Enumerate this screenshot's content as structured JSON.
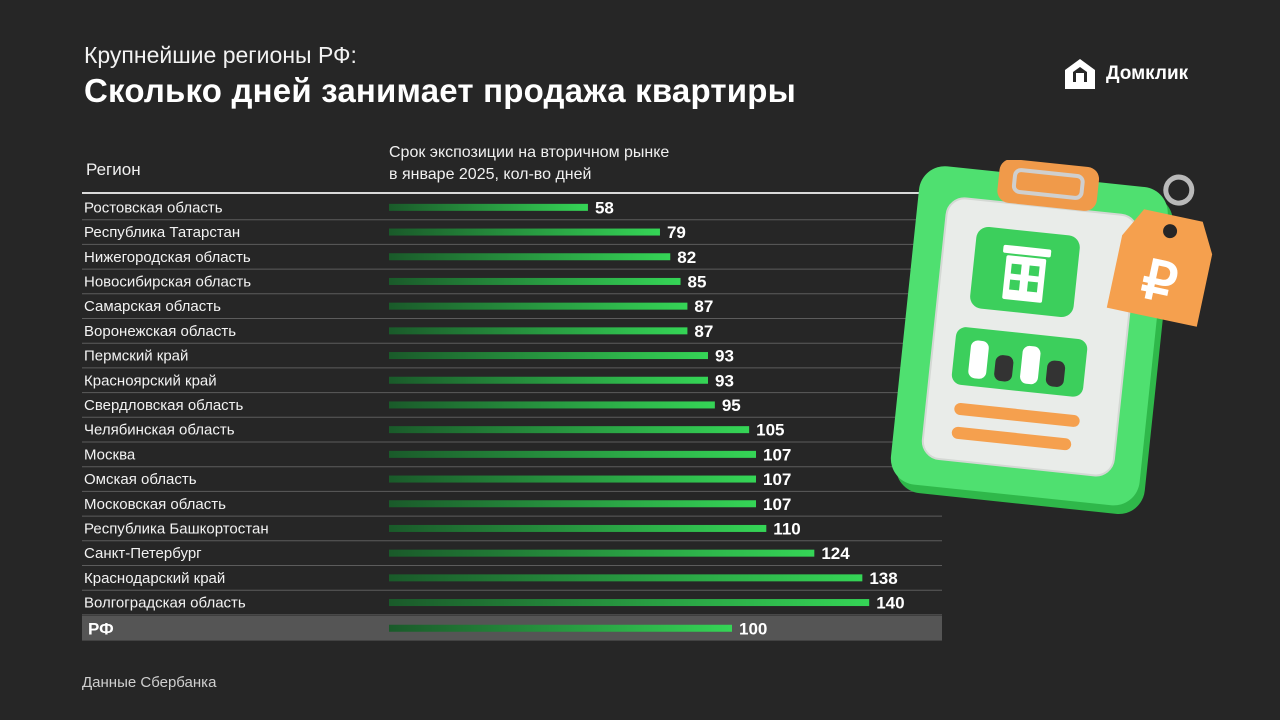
{
  "header": {
    "subtitle": "Крупнейшие регионы РФ:",
    "title": "Сколько дней занимает продажа квартиры"
  },
  "brand": {
    "name": "Домклик",
    "icon": "domclick-logo-icon"
  },
  "table": {
    "column_region": "Регион",
    "column_value_line1": "Срок экспозиции на вторичном рынке",
    "column_value_line2": "в январе 2025, кол-во дней"
  },
  "source": "Данные Сбербанка",
  "colors": {
    "background": "#262626",
    "bar_start": "#1a5a2a",
    "bar_end": "#35d556",
    "total_row_bg": "#555555",
    "row_divider": "#5c5c5c"
  },
  "chart_data": {
    "type": "bar",
    "orientation": "horizontal",
    "categories": [
      "Ростовская область",
      "Республика Татарстан",
      "Нижегородская область",
      "Новосибирская область",
      "Самарская область",
      "Воронежская область",
      "Пермский край",
      "Красноярский край",
      "Свердловская область",
      "Челябинская область",
      "Москва",
      "Омская область",
      "Московская область",
      "Республика Башкортостан",
      "Санкт-Петербург",
      "Краснодарский край",
      "Волгоградская область"
    ],
    "values": [
      58,
      79,
      82,
      85,
      87,
      87,
      93,
      93,
      95,
      105,
      107,
      107,
      107,
      110,
      124,
      138,
      140
    ],
    "total": {
      "label": "РФ",
      "value": 100
    },
    "title": "Сколько дней занимает продажа квартиры",
    "xlabel": "",
    "ylabel": "",
    "grid": false,
    "data_labels": true
  }
}
